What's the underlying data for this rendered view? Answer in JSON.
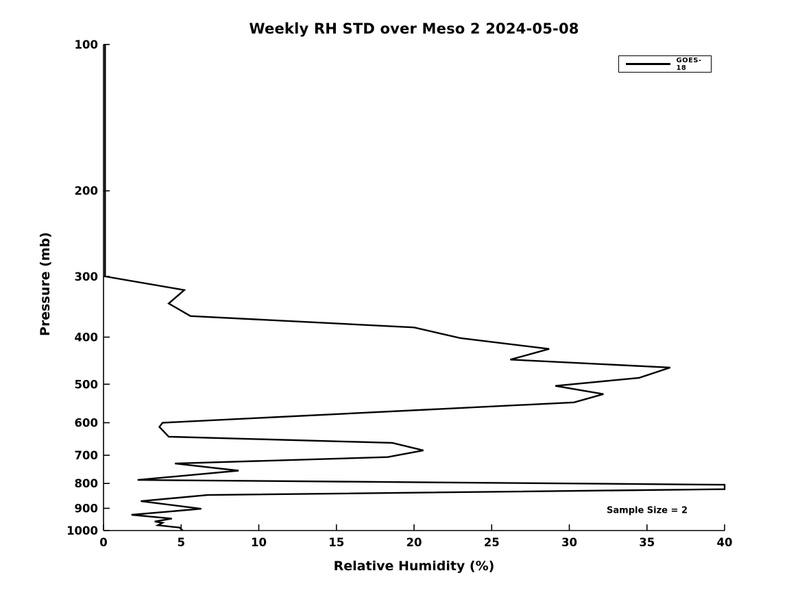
{
  "figure": {
    "title": "Weekly RH STD over Meso 2 2024-05-08",
    "xlabel": "Relative Humidity (%)",
    "ylabel": "Pressure (mb)",
    "legend_label": "GOES-18",
    "annotation": "Sample Size = 2"
  },
  "chart_data": {
    "type": "line",
    "title": "Weekly RH STD over Meso 2 2024-05-08",
    "xlabel": "Relative Humidity (%)",
    "ylabel": "Pressure (mb)",
    "grid": false,
    "x_axis": {
      "min": 0,
      "max": 40,
      "scale": "linear",
      "ticks": [
        0,
        5,
        10,
        15,
        20,
        25,
        30,
        35,
        40
      ]
    },
    "y_axis": {
      "min": 100,
      "max": 1000,
      "scale": "log10",
      "inverted": true,
      "ticks": [
        100,
        200,
        300,
        400,
        500,
        600,
        700,
        800,
        900,
        1000
      ]
    },
    "legend": {
      "position": "top-right",
      "entries": [
        {
          "label": "GOES-18",
          "color": "#000000"
        }
      ]
    },
    "annotations": [
      {
        "text": "Sample Size = 2"
      }
    ],
    "colors": {
      "line": "#000000",
      "background": "#ffffff",
      "text": "#000000"
    },
    "series": [
      {
        "name": "GOES-18",
        "color": "#000000",
        "line_width": 2.4,
        "points_rh_pressure": [
          [
            0.1,
            100
          ],
          [
            0.1,
            300
          ],
          [
            5.2,
            320
          ],
          [
            4.2,
            341
          ],
          [
            5.6,
            362
          ],
          [
            20.0,
            382
          ],
          [
            23.0,
            402
          ],
          [
            28.7,
            423
          ],
          [
            26.2,
            445
          ],
          [
            36.5,
            462
          ],
          [
            34.5,
            485
          ],
          [
            29.1,
            504
          ],
          [
            32.2,
            524
          ],
          [
            30.3,
            545
          ],
          [
            3.8,
            600
          ],
          [
            3.6,
            612
          ],
          [
            4.2,
            641
          ],
          [
            18.6,
            660
          ],
          [
            20.6,
            684
          ],
          [
            18.3,
            706
          ],
          [
            4.6,
            728
          ],
          [
            8.7,
            753
          ],
          [
            2.2,
            787
          ],
          [
            40.0,
            805
          ],
          [
            40.0,
            822
          ],
          [
            6.7,
            845
          ],
          [
            2.4,
            870
          ],
          [
            6.3,
            902
          ],
          [
            1.8,
            928
          ],
          [
            4.4,
            945
          ],
          [
            3.3,
            958
          ],
          [
            3.8,
            964
          ],
          [
            3.5,
            975
          ],
          [
            4.9,
            986
          ],
          [
            5.1,
            1000
          ]
        ]
      }
    ]
  }
}
